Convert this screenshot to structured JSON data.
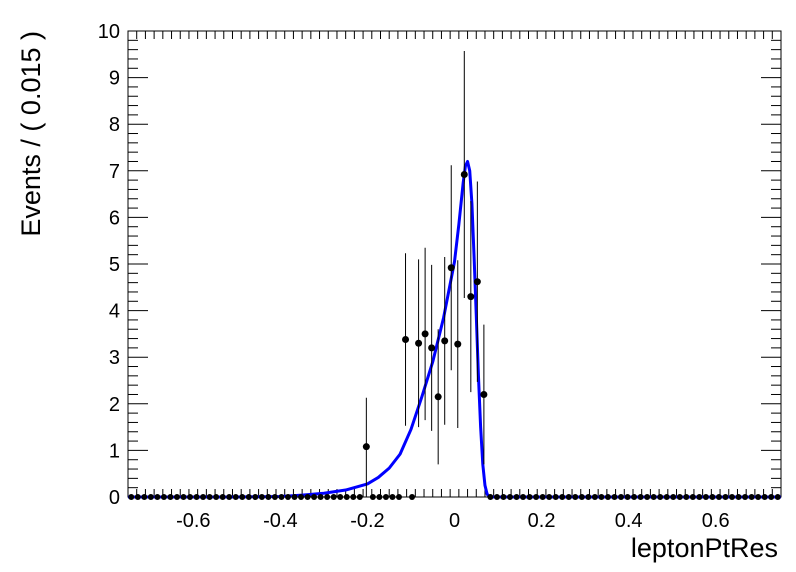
{
  "chart_data": {
    "type": "scatter",
    "title": "",
    "xlabel": "leptonPtRes",
    "ylabel": "Events / ( 0.015 )",
    "xlim": [
      -0.75,
      0.75
    ],
    "ylim": [
      0,
      10
    ],
    "x_ticks": [
      -0.6,
      -0.4,
      -0.2,
      0,
      0.2,
      0.4,
      0.6
    ],
    "x_tick_labels": [
      "-0.6",
      "-0.4",
      "-0.2",
      "0",
      "0.2",
      "0.4",
      "0.6"
    ],
    "y_ticks": [
      0,
      1,
      2,
      3,
      4,
      5,
      6,
      7,
      8,
      9,
      10
    ],
    "y_tick_labels": [
      "0",
      "1",
      "2",
      "3",
      "4",
      "5",
      "6",
      "7",
      "8",
      "9",
      "10"
    ],
    "grid": false,
    "legend": "none",
    "colors": {
      "data": "#000000",
      "fit": "#0000ff"
    },
    "series": [
      {
        "kind": "points-with-errors",
        "points": [
          {
            "x": -0.2025,
            "y": 1.08,
            "err": [
              1.08,
              1.05
            ]
          },
          {
            "x": -0.1125,
            "y": 3.38,
            "err": [
              1.85,
              1.85
            ]
          },
          {
            "x": -0.0825,
            "y": 3.3,
            "err": [
              1.8,
              1.8
            ]
          },
          {
            "x": -0.0675,
            "y": 3.5,
            "err": [
              1.85,
              1.85
            ]
          },
          {
            "x": -0.0525,
            "y": 3.2,
            "err": [
              1.78,
              1.78
            ]
          },
          {
            "x": -0.0375,
            "y": 2.15,
            "err": [
              1.45,
              1.45
            ]
          },
          {
            "x": -0.0225,
            "y": 3.35,
            "err": [
              1.8,
              1.8
            ]
          },
          {
            "x": -0.0075,
            "y": 4.92,
            "err": [
              2.2,
              2.2
            ]
          },
          {
            "x": 0.0075,
            "y": 3.28,
            "err": [
              1.8,
              1.8
            ]
          },
          {
            "x": 0.0225,
            "y": 6.92,
            "err": [
              2.65,
              2.65
            ]
          },
          {
            "x": 0.0375,
            "y": 4.3,
            "err": [
              2.05,
              2.05
            ]
          },
          {
            "x": 0.0525,
            "y": 4.62,
            "err": [
              2.15,
              2.15
            ]
          },
          {
            "x": 0.0675,
            "y": 2.2,
            "err": [
              1.5,
              1.5
            ]
          }
        ],
        "zeros": [
          -0.7425,
          -0.7275,
          -0.7125,
          -0.6975,
          -0.6825,
          -0.6675,
          -0.6525,
          -0.6375,
          -0.6225,
          -0.6075,
          -0.5925,
          -0.5775,
          -0.5625,
          -0.5475,
          -0.5325,
          -0.5175,
          -0.5025,
          -0.4875,
          -0.4725,
          -0.4575,
          -0.4425,
          -0.4275,
          -0.4125,
          -0.3975,
          -0.3825,
          -0.3675,
          -0.3525,
          -0.3375,
          -0.3225,
          -0.3075,
          -0.2925,
          -0.2775,
          -0.2625,
          -0.2475,
          -0.2325,
          -0.2175,
          -0.1875,
          -0.1725,
          -0.1575,
          -0.1425,
          -0.1275,
          -0.0975,
          0.0825,
          0.0975,
          0.1125,
          0.1275,
          0.1425,
          0.1575,
          0.1725,
          0.1875,
          0.2025,
          0.2175,
          0.2325,
          0.2475,
          0.2625,
          0.2775,
          0.2925,
          0.3075,
          0.3225,
          0.3375,
          0.3525,
          0.3675,
          0.3825,
          0.3975,
          0.4125,
          0.4275,
          0.4425,
          0.4575,
          0.4725,
          0.4875,
          0.5025,
          0.5175,
          0.5325,
          0.5475,
          0.5625,
          0.5775,
          0.5925,
          0.6075,
          0.6225,
          0.6375,
          0.6525,
          0.6675,
          0.6825,
          0.6975,
          0.7125,
          0.7275,
          0.7425
        ]
      },
      {
        "kind": "curve",
        "x": [
          -0.75,
          -0.5,
          -0.4,
          -0.35,
          -0.3,
          -0.25,
          -0.2,
          -0.175,
          -0.15,
          -0.125,
          -0.1,
          -0.075,
          -0.05,
          -0.025,
          0.0,
          0.01,
          0.02,
          0.025,
          0.03,
          0.035,
          0.04,
          0.045,
          0.05,
          0.055,
          0.06,
          0.065,
          0.07,
          0.075,
          0.08,
          0.085,
          0.09,
          0.1,
          0.75
        ],
        "y": [
          0.0,
          0.0,
          0.01,
          0.04,
          0.08,
          0.15,
          0.28,
          0.42,
          0.62,
          0.92,
          1.45,
          2.15,
          2.9,
          3.85,
          5.05,
          5.85,
          6.75,
          7.1,
          7.2,
          7.0,
          6.3,
          5.15,
          3.9,
          2.6,
          1.5,
          0.7,
          0.25,
          0.06,
          0.01,
          0.0,
          0.0,
          0.0,
          0.0
        ]
      }
    ]
  }
}
